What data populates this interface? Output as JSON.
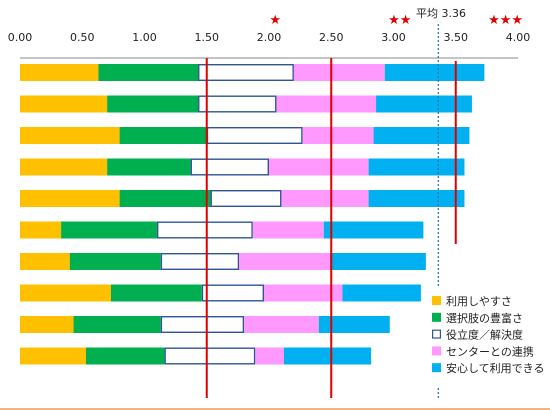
{
  "chart_data": {
    "type": "bar",
    "orientation": "horizontal",
    "stacked": true,
    "xlim": [
      0,
      4
    ],
    "x_ticks": [
      "0.00",
      "0.50",
      "1.00",
      "1.50",
      "2.00",
      "2.50",
      "3.00",
      "3.50",
      "4.00"
    ],
    "series": [
      {
        "name": "利用しやすさ",
        "color": "#FFC000",
        "style": "solid",
        "values": [
          0.63,
          0.7,
          0.8,
          0.7,
          0.8,
          0.33,
          0.4,
          0.73,
          0.43,
          0.53
        ]
      },
      {
        "name": "選択肢の豊富さ",
        "color": "#00B050",
        "style": "solid",
        "values": [
          0.8,
          0.73,
          0.7,
          0.67,
          0.73,
          0.77,
          0.73,
          0.73,
          0.7,
          0.63
        ]
      },
      {
        "name": "役立度／解決度",
        "color": "#2F5597",
        "style": "outline",
        "values": [
          0.77,
          0.63,
          0.77,
          0.63,
          0.57,
          0.77,
          0.63,
          0.5,
          0.67,
          0.73
        ]
      },
      {
        "name": "センターとの連携",
        "color": "#FF99FF",
        "style": "solid",
        "values": [
          0.73,
          0.8,
          0.57,
          0.8,
          0.7,
          0.57,
          0.73,
          0.63,
          0.6,
          0.23
        ]
      },
      {
        "name": "安心して利用できる",
        "color": "#00B0F0",
        "style": "solid",
        "values": [
          0.8,
          0.77,
          0.77,
          0.77,
          0.77,
          0.8,
          0.77,
          0.63,
          0.57,
          0.7
        ]
      }
    ],
    "reference_lines": [
      {
        "x": 1.5,
        "color": "#E00000",
        "style": "solid"
      },
      {
        "x": 2.5,
        "color": "#E00000",
        "style": "solid"
      },
      {
        "x": 3.5,
        "color": "#E00000",
        "style": "solid"
      },
      {
        "x": 3.36,
        "color": "#2F75B5",
        "style": "dotted"
      }
    ],
    "annotations": [
      {
        "text": "★",
        "x": 2.05
      },
      {
        "text": "★★",
        "x": 3.05
      },
      {
        "text": "★★★",
        "x": 3.9
      }
    ],
    "average_label": "平均 3.36",
    "legend_position": "bottom-right"
  }
}
